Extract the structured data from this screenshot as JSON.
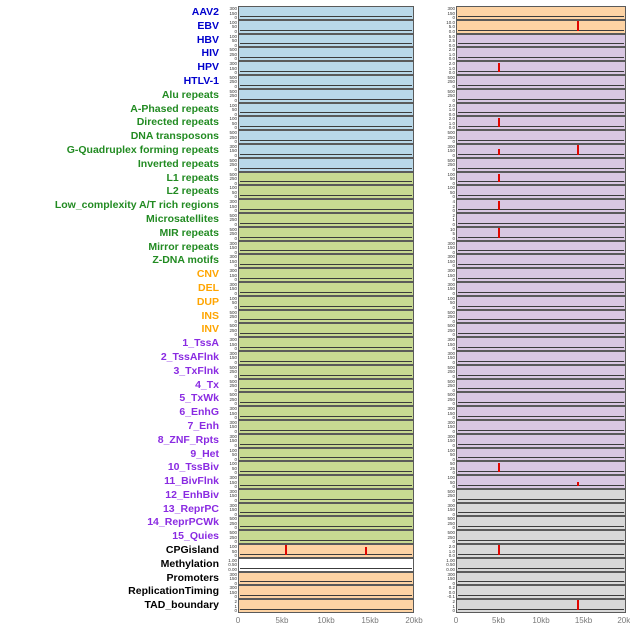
{
  "chart_data": {
    "type": "line",
    "x_ticks": [
      "0",
      "5kb",
      "10kb",
      "15kb",
      "20kb"
    ],
    "x_range_kb": [
      0,
      20
    ],
    "legend_position": "none",
    "grid": false,
    "label_colors": {
      "virus": "#0000cd",
      "repeat": "#228b22",
      "sv": "#ffa500",
      "state": "#8a2be2",
      "other": "#000000"
    },
    "panel_colors": {
      "blue": "#b9d8e9",
      "green": "#c8da92",
      "orange": "#fdd3a4",
      "purple": "#d9c7e2",
      "gray": "#d8d8d8",
      "white": "#ffffff"
    },
    "spike_color": "#e10600",
    "baseline_color": "#3c3c3c",
    "rows": [
      {
        "label": "AAV2",
        "group": "virus",
        "left": {
          "bg": "blue",
          "ticks": [
            "300",
            "150",
            "0"
          ],
          "spikes": []
        },
        "right": {
          "bg": "orange",
          "ticks": [
            "300",
            "150",
            "0"
          ],
          "spikes": []
        }
      },
      {
        "label": "EBV",
        "group": "virus",
        "left": {
          "bg": "blue",
          "ticks": [
            "100",
            "50",
            "0"
          ],
          "spikes": []
        },
        "right": {
          "bg": "orange",
          "ticks": [
            "10.0",
            "5.0",
            "0.0"
          ],
          "spikes": [
            {
              "x": 0.72,
              "h": 0.85
            }
          ]
        }
      },
      {
        "label": "HBV",
        "group": "virus",
        "left": {
          "bg": "blue",
          "ticks": [
            "100",
            "50",
            "0"
          ],
          "spikes": []
        },
        "right": {
          "bg": "purple",
          "ticks": [
            "5.0",
            "2.5",
            "0.0"
          ],
          "spikes": []
        }
      },
      {
        "label": "HIV",
        "group": "virus",
        "left": {
          "bg": "blue",
          "ticks": [
            "500",
            "250",
            "0"
          ],
          "spikes": []
        },
        "right": {
          "bg": "purple",
          "ticks": [
            "2.0",
            "1.0",
            "0.0"
          ],
          "spikes": []
        }
      },
      {
        "label": "HPV",
        "group": "virus",
        "left": {
          "bg": "blue",
          "ticks": [
            "300",
            "150",
            "0"
          ],
          "spikes": []
        },
        "right": {
          "bg": "purple",
          "ticks": [
            "2.0",
            "1.0",
            "0.0"
          ],
          "spikes": [
            {
              "x": 0.25,
              "h": 0.8
            }
          ]
        }
      },
      {
        "label": "HTLV-1",
        "group": "virus",
        "left": {
          "bg": "blue",
          "ticks": [
            "500",
            "250",
            "0"
          ],
          "spikes": []
        },
        "right": {
          "bg": "purple",
          "ticks": [
            "500",
            "250",
            "0"
          ],
          "spikes": []
        }
      },
      {
        "label": "Alu repeats",
        "group": "repeat",
        "left": {
          "bg": "blue",
          "ticks": [
            "500",
            "250",
            "0"
          ],
          "spikes": []
        },
        "right": {
          "bg": "purple",
          "ticks": [
            "500",
            "250",
            "0"
          ],
          "spikes": []
        }
      },
      {
        "label": "A-Phased repeats",
        "group": "repeat",
        "left": {
          "bg": "blue",
          "ticks": [
            "100",
            "50",
            "0"
          ],
          "spikes": []
        },
        "right": {
          "bg": "purple",
          "ticks": [
            "2.0",
            "1.0",
            "0.0"
          ],
          "spikes": []
        }
      },
      {
        "label": "Directed repeats",
        "group": "repeat",
        "left": {
          "bg": "blue",
          "ticks": [
            "100",
            "50",
            "0"
          ],
          "spikes": []
        },
        "right": {
          "bg": "purple",
          "ticks": [
            "2.0",
            "1.0",
            "0.0"
          ],
          "spikes": [
            {
              "x": 0.25,
              "h": 0.78
            }
          ]
        }
      },
      {
        "label": "DNA transposons",
        "group": "repeat",
        "left": {
          "bg": "blue",
          "ticks": [
            "500",
            "250",
            "0"
          ],
          "spikes": []
        },
        "right": {
          "bg": "purple",
          "ticks": [
            "500",
            "250",
            "0"
          ],
          "spikes": []
        }
      },
      {
        "label": "G-Quadruplex forming repeats",
        "group": "repeat",
        "left": {
          "bg": "blue",
          "ticks": [
            "300",
            "150",
            "0"
          ],
          "spikes": []
        },
        "right": {
          "bg": "purple",
          "ticks": [
            "300",
            "150",
            "0"
          ],
          "spikes": [
            {
              "x": 0.25,
              "h": 0.5
            },
            {
              "x": 0.72,
              "h": 0.8
            }
          ]
        }
      },
      {
        "label": "Inverted repeats",
        "group": "repeat",
        "left": {
          "bg": "blue",
          "ticks": [
            "500",
            "250",
            "0"
          ],
          "spikes": []
        },
        "right": {
          "bg": "purple",
          "ticks": [
            "500",
            "250",
            "0"
          ],
          "spikes": []
        }
      },
      {
        "label": "L1 repeats",
        "group": "repeat",
        "left": {
          "bg": "green",
          "ticks": [
            "500",
            "250",
            "0"
          ],
          "spikes": []
        },
        "right": {
          "bg": "purple",
          "ticks": [
            "100",
            "50",
            "0"
          ],
          "spikes": [
            {
              "x": 0.25,
              "h": 0.75
            }
          ]
        }
      },
      {
        "label": "L2 repeats",
        "group": "repeat",
        "left": {
          "bg": "green",
          "ticks": [
            "100",
            "50",
            "0"
          ],
          "spikes": []
        },
        "right": {
          "bg": "purple",
          "ticks": [
            "100",
            "50",
            "0"
          ],
          "spikes": []
        }
      },
      {
        "label": "Low_complexity A/T rich regions",
        "group": "repeat",
        "left": {
          "bg": "green",
          "ticks": [
            "300",
            "150",
            "0"
          ],
          "spikes": []
        },
        "right": {
          "bg": "purple",
          "ticks": [
            "4",
            "2",
            "0"
          ],
          "spikes": [
            {
              "x": 0.25,
              "h": 0.8
            }
          ]
        }
      },
      {
        "label": "Microsatellites",
        "group": "repeat",
        "left": {
          "bg": "green",
          "ticks": [
            "500",
            "250",
            "0"
          ],
          "spikes": []
        },
        "right": {
          "bg": "purple",
          "ticks": [
            "2",
            "1",
            "0"
          ],
          "spikes": []
        }
      },
      {
        "label": "MIR repeats",
        "group": "repeat",
        "left": {
          "bg": "green",
          "ticks": [
            "500",
            "250",
            "0"
          ],
          "spikes": []
        },
        "right": {
          "bg": "purple",
          "ticks": [
            "10",
            "5",
            "0"
          ],
          "spikes": [
            {
              "x": 0.25,
              "h": 0.8
            }
          ]
        }
      },
      {
        "label": "Mirror repeats",
        "group": "repeat",
        "left": {
          "bg": "green",
          "ticks": [
            "300",
            "150",
            "0"
          ],
          "spikes": []
        },
        "right": {
          "bg": "purple",
          "ticks": [
            "300",
            "150",
            "0"
          ],
          "spikes": []
        }
      },
      {
        "label": "Z-DNA motifs",
        "group": "repeat",
        "left": {
          "bg": "green",
          "ticks": [
            "300",
            "150",
            "0"
          ],
          "spikes": []
        },
        "right": {
          "bg": "purple",
          "ticks": [
            "300",
            "150",
            "0"
          ],
          "spikes": []
        }
      },
      {
        "label": "CNV",
        "group": "sv",
        "left": {
          "bg": "green",
          "ticks": [
            "300",
            "150",
            "0"
          ],
          "spikes": []
        },
        "right": {
          "bg": "purple",
          "ticks": [
            "300",
            "150",
            "0"
          ],
          "spikes": []
        }
      },
      {
        "label": "DEL",
        "group": "sv",
        "left": {
          "bg": "green",
          "ticks": [
            "300",
            "150",
            "0"
          ],
          "spikes": []
        },
        "right": {
          "bg": "purple",
          "ticks": [
            "300",
            "150",
            "0"
          ],
          "spikes": []
        }
      },
      {
        "label": "DUP",
        "group": "sv",
        "left": {
          "bg": "green",
          "ticks": [
            "100",
            "50",
            "0"
          ],
          "spikes": []
        },
        "right": {
          "bg": "purple",
          "ticks": [
            "100",
            "50",
            "0"
          ],
          "spikes": []
        }
      },
      {
        "label": "INS",
        "group": "sv",
        "left": {
          "bg": "green",
          "ticks": [
            "500",
            "250",
            "0"
          ],
          "spikes": []
        },
        "right": {
          "bg": "purple",
          "ticks": [
            "500",
            "250",
            "0"
          ],
          "spikes": []
        }
      },
      {
        "label": "INV",
        "group": "sv",
        "left": {
          "bg": "green",
          "ticks": [
            "500",
            "250",
            "0"
          ],
          "spikes": []
        },
        "right": {
          "bg": "purple",
          "ticks": [
            "500",
            "250",
            "0"
          ],
          "spikes": []
        }
      },
      {
        "label": "1_TssA",
        "group": "state",
        "left": {
          "bg": "green",
          "ticks": [
            "300",
            "150",
            "0"
          ],
          "spikes": []
        },
        "right": {
          "bg": "purple",
          "ticks": [
            "300",
            "150",
            "0"
          ],
          "spikes": []
        }
      },
      {
        "label": "2_TssAFlnk",
        "group": "state",
        "left": {
          "bg": "green",
          "ticks": [
            "300",
            "150",
            "0"
          ],
          "spikes": []
        },
        "right": {
          "bg": "purple",
          "ticks": [
            "300",
            "150",
            "0"
          ],
          "spikes": []
        }
      },
      {
        "label": "3_TxFlnk",
        "group": "state",
        "left": {
          "bg": "green",
          "ticks": [
            "500",
            "250",
            "0"
          ],
          "spikes": []
        },
        "right": {
          "bg": "purple",
          "ticks": [
            "500",
            "250",
            "0"
          ],
          "spikes": []
        }
      },
      {
        "label": "4_Tx",
        "group": "state",
        "left": {
          "bg": "green",
          "ticks": [
            "500",
            "250",
            "0"
          ],
          "spikes": []
        },
        "right": {
          "bg": "purple",
          "ticks": [
            "500",
            "250",
            "0"
          ],
          "spikes": []
        }
      },
      {
        "label": "5_TxWk",
        "group": "state",
        "left": {
          "bg": "green",
          "ticks": [
            "500",
            "250",
            "0"
          ],
          "spikes": []
        },
        "right": {
          "bg": "purple",
          "ticks": [
            "500",
            "250",
            "0"
          ],
          "spikes": []
        }
      },
      {
        "label": "6_EnhG",
        "group": "state",
        "left": {
          "bg": "green",
          "ticks": [
            "300",
            "150",
            "0"
          ],
          "spikes": []
        },
        "right": {
          "bg": "purple",
          "ticks": [
            "300",
            "150",
            "0"
          ],
          "spikes": []
        }
      },
      {
        "label": "7_Enh",
        "group": "state",
        "left": {
          "bg": "green",
          "ticks": [
            "300",
            "150",
            "0"
          ],
          "spikes": []
        },
        "right": {
          "bg": "purple",
          "ticks": [
            "300",
            "150",
            "0"
          ],
          "spikes": []
        }
      },
      {
        "label": "8_ZNF_Rpts",
        "group": "state",
        "left": {
          "bg": "green",
          "ticks": [
            "300",
            "150",
            "0"
          ],
          "spikes": []
        },
        "right": {
          "bg": "purple",
          "ticks": [
            "300",
            "150",
            "0"
          ],
          "spikes": []
        }
      },
      {
        "label": "9_Het",
        "group": "state",
        "left": {
          "bg": "green",
          "ticks": [
            "100",
            "50",
            "0"
          ],
          "spikes": []
        },
        "right": {
          "bg": "purple",
          "ticks": [
            "100",
            "50",
            "0"
          ],
          "spikes": []
        }
      },
      {
        "label": "10_TssBiv",
        "group": "state",
        "left": {
          "bg": "green",
          "ticks": [
            "100",
            "50",
            "0"
          ],
          "spikes": []
        },
        "right": {
          "bg": "purple",
          "ticks": [
            "50",
            "25",
            "0"
          ],
          "spikes": [
            {
              "x": 0.25,
              "h": 0.8
            }
          ]
        }
      },
      {
        "label": "11_BivFlnk",
        "group": "state",
        "left": {
          "bg": "green",
          "ticks": [
            "300",
            "150",
            "0"
          ],
          "spikes": []
        },
        "right": {
          "bg": "purple",
          "ticks": [
            "100",
            "50",
            "0"
          ],
          "spikes": [
            {
              "x": 0.72,
              "h": 0.35
            }
          ]
        }
      },
      {
        "label": "12_EnhBiv",
        "group": "state",
        "left": {
          "bg": "green",
          "ticks": [
            "300",
            "150",
            "0"
          ],
          "spikes": []
        },
        "right": {
          "bg": "gray",
          "ticks": [
            "500",
            "250",
            "0"
          ],
          "spikes": []
        }
      },
      {
        "label": "13_ReprPC",
        "group": "state",
        "left": {
          "bg": "green",
          "ticks": [
            "300",
            "150",
            "0"
          ],
          "spikes": []
        },
        "right": {
          "bg": "gray",
          "ticks": [
            "300",
            "150",
            "0"
          ],
          "spikes": []
        }
      },
      {
        "label": "14_ReprPCWk",
        "group": "state",
        "left": {
          "bg": "green",
          "ticks": [
            "500",
            "250",
            "0"
          ],
          "spikes": []
        },
        "right": {
          "bg": "gray",
          "ticks": [
            "500",
            "250",
            "0"
          ],
          "spikes": []
        }
      },
      {
        "label": "15_Quies",
        "group": "state",
        "left": {
          "bg": "green",
          "ticks": [
            "500",
            "250",
            "0"
          ],
          "spikes": []
        },
        "right": {
          "bg": "gray",
          "ticks": [
            "500",
            "250",
            "0"
          ],
          "spikes": []
        }
      },
      {
        "label": "CPGisland",
        "group": "other",
        "left": {
          "bg": "orange",
          "ticks": [
            "100",
            "50",
            "0"
          ],
          "spikes": [
            {
              "x": 0.27,
              "h": 0.8
            },
            {
              "x": 0.73,
              "h": 0.7
            }
          ]
        },
        "right": {
          "bg": "gray",
          "ticks": [
            "2.0",
            "1.0",
            "0.0"
          ],
          "spikes": [
            {
              "x": 0.25,
              "h": 0.8
            }
          ]
        }
      },
      {
        "label": "Methylation",
        "group": "other",
        "left": {
          "bg": "white",
          "ticks": [
            "1.00",
            "0.50",
            "0.00"
          ],
          "spikes": []
        },
        "right": {
          "bg": "gray",
          "ticks": [
            "1.00",
            "0.50",
            "0.00"
          ],
          "spikes": []
        }
      },
      {
        "label": "Promoters",
        "group": "other",
        "left": {
          "bg": "orange",
          "ticks": [
            "300",
            "150",
            "0"
          ],
          "spikes": []
        },
        "right": {
          "bg": "gray",
          "ticks": [
            "300",
            "150",
            "0"
          ],
          "spikes": []
        }
      },
      {
        "label": "ReplicationTiming",
        "group": "other",
        "left": {
          "bg": "orange",
          "ticks": [
            "300",
            "150",
            "0"
          ],
          "spikes": []
        },
        "right": {
          "bg": "gray",
          "ticks": [
            "0.2",
            "0.0",
            "-0.1"
          ],
          "spikes": []
        }
      },
      {
        "label": "TAD_boundary",
        "group": "other",
        "left": {
          "bg": "orange",
          "ticks": [
            "2",
            "1",
            "0"
          ],
          "spikes": []
        },
        "right": {
          "bg": "gray",
          "ticks": [
            "2",
            "1",
            "0"
          ],
          "spikes": [
            {
              "x": 0.72,
              "h": 0.85
            }
          ]
        }
      }
    ]
  }
}
